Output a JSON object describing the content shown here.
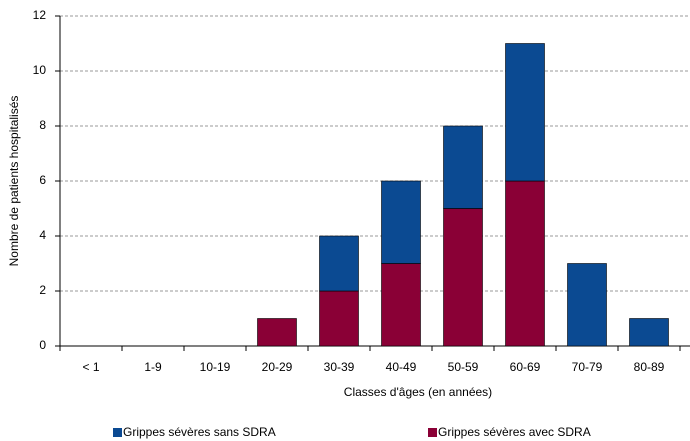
{
  "chart_data": {
    "type": "stacked_bar",
    "categories": [
      "< 1",
      "1-9",
      "10-19",
      "20-29",
      "30-39",
      "40-49",
      "50-59",
      "60-69",
      "70-79",
      "80-89",
      ">="
    ],
    "series": [
      {
        "name": "Grippes sévères sans SDRA",
        "color": "#0b4a92",
        "values": [
          0,
          0,
          0,
          0,
          2,
          3,
          3,
          5,
          3,
          1,
          0
        ]
      },
      {
        "name": "Grippes sévères avec SDRA",
        "color": "#8a0036",
        "values": [
          0,
          0,
          0,
          1,
          2,
          3,
          5,
          6,
          0,
          0,
          0
        ]
      }
    ],
    "x_label": "Classes d'âges (en années)",
    "y_label": "Nombre de patients hospitalisés",
    "ylim": [
      0,
      12
    ],
    "yticks": [
      0,
      2,
      4,
      6,
      8,
      10,
      12
    ],
    "grid": true
  }
}
